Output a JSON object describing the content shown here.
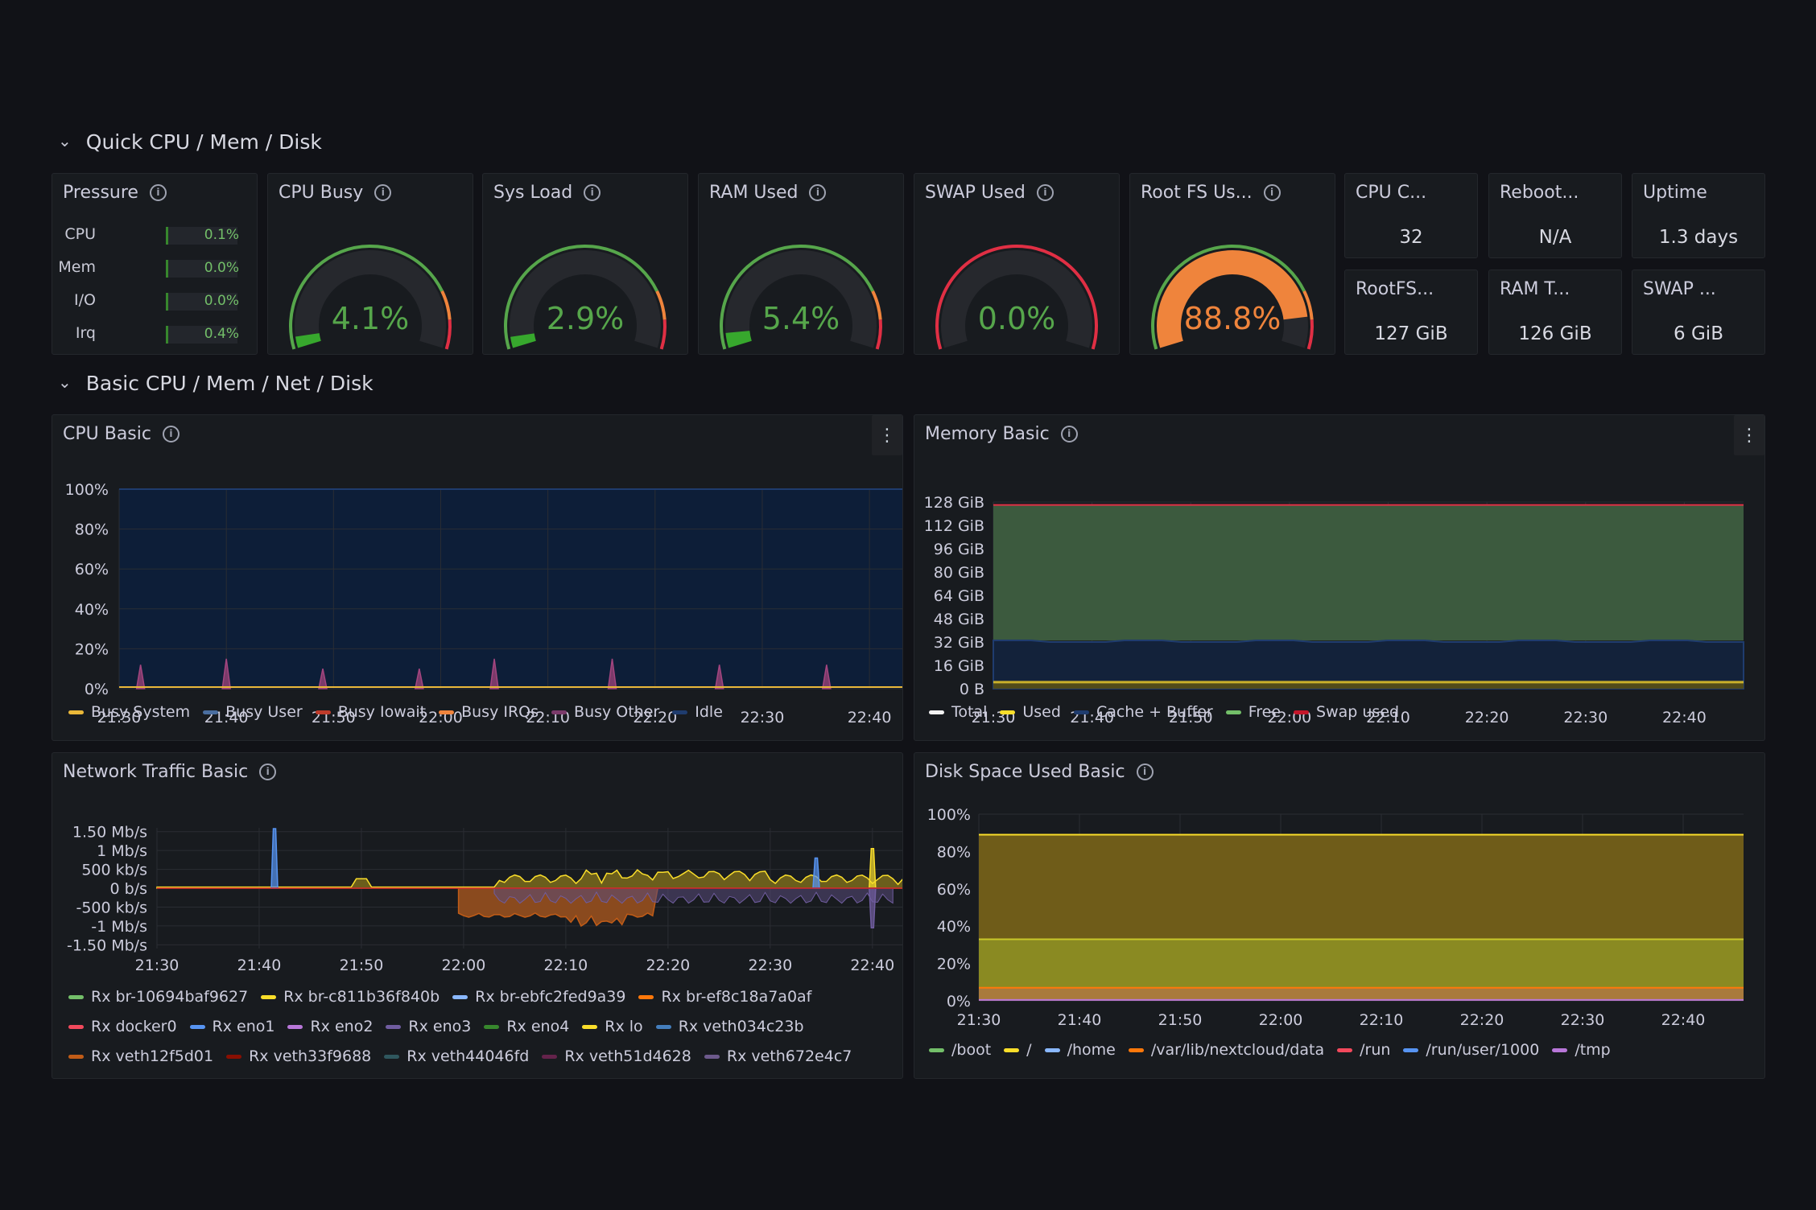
{
  "rows": [
    {
      "title": "Quick CPU / Mem / Disk"
    },
    {
      "title": "Basic CPU / Mem / Net / Disk"
    }
  ],
  "pressure": {
    "title": "Pressure",
    "rows": [
      {
        "label": "CPU",
        "value": "0.1%",
        "fraction": 0.001
      },
      {
        "label": "Mem",
        "value": "0.0%",
        "fraction": 0.0
      },
      {
        "label": "I/O",
        "value": "0.0%",
        "fraction": 0.0
      },
      {
        "label": "Irq",
        "value": "0.4%",
        "fraction": 0.004
      }
    ]
  },
  "gauges": [
    {
      "title": "CPU Busy",
      "value": "4.1%",
      "percent": 4.1,
      "color": "#37a82d",
      "ring_color": "#56a64b"
    },
    {
      "title": "Sys Load",
      "value": "2.9%",
      "percent": 2.9,
      "color": "#37a82d",
      "ring_color": "#56a64b"
    },
    {
      "title": "RAM Used",
      "value": "5.4%",
      "percent": 5.4,
      "color": "#37a82d",
      "ring_color": "#56a64b"
    },
    {
      "title": "SWAP Used",
      "value": "0.0%",
      "percent": 0.0,
      "color": "#37a82d",
      "ring_color": "#e02f44"
    },
    {
      "title": "Root FS Us...",
      "value": "88.8%",
      "percent": 88.8,
      "color": "#ef843c",
      "ring_color": "#56a64b"
    }
  ],
  "stats": [
    {
      "title": "CPU C...",
      "value": "32"
    },
    {
      "title": "Reboot...",
      "value": "N/A"
    },
    {
      "title": "Uptime",
      "value": "1.3 days"
    },
    {
      "title": "RootFS...",
      "value": "127 GiB"
    },
    {
      "title": "RAM T...",
      "value": "126 GiB"
    },
    {
      "title": "SWAP ...",
      "value": "6 GiB"
    }
  ],
  "cpu_basic": {
    "title": "CPU Basic",
    "legend": [
      {
        "name": "Busy System",
        "color": "#eab839"
      },
      {
        "name": "Busy User",
        "color": "#4a6ea0"
      },
      {
        "name": "Busy Iowait",
        "color": "#bf3b2a"
      },
      {
        "name": "Busy IRQs",
        "color": "#ef843c"
      },
      {
        "name": "Busy Other",
        "color": "#7b3a6a"
      },
      {
        "name": "Idle",
        "color": "#1f3c6e"
      }
    ]
  },
  "memory_basic": {
    "title": "Memory Basic",
    "legend": [
      {
        "name": "Total",
        "color": "#f2f2f2"
      },
      {
        "name": "Used",
        "color": "#fade2a"
      },
      {
        "name": "Cache + Buffer",
        "color": "#1f3c6e"
      },
      {
        "name": "Free",
        "color": "#73bf69"
      },
      {
        "name": "Swap used",
        "color": "#c4162a"
      }
    ]
  },
  "network_basic": {
    "title": "Network Traffic Basic",
    "legend": [
      {
        "name": "Rx br-10694baf9627",
        "color": "#73bf69"
      },
      {
        "name": "Rx br-c811b36f840b",
        "color": "#fade2a"
      },
      {
        "name": "Rx br-ebfc2fed9a39",
        "color": "#8ab8ff"
      },
      {
        "name": "Rx br-ef8c18a7a0af",
        "color": "#ff780a"
      },
      {
        "name": "Rx docker0",
        "color": "#f2495c"
      },
      {
        "name": "Rx eno1",
        "color": "#5794f2"
      },
      {
        "name": "Rx eno2",
        "color": "#b877d9"
      },
      {
        "name": "Rx eno3",
        "color": "#705da0"
      },
      {
        "name": "Rx eno4",
        "color": "#37872d"
      },
      {
        "name": "Rx lo",
        "color": "#fade2a"
      },
      {
        "name": "Rx veth034c23b",
        "color": "#447ebc"
      },
      {
        "name": "Rx veth12f5d01",
        "color": "#c15c17"
      },
      {
        "name": "Rx veth33f9688",
        "color": "#890f02"
      },
      {
        "name": "Rx veth44046fd",
        "color": "#2f575e"
      },
      {
        "name": "Rx veth51d4628",
        "color": "#64234b"
      },
      {
        "name": "Rx veth672e4c7",
        "color": "#6d5a8c"
      }
    ]
  },
  "disk_basic": {
    "title": "Disk Space Used Basic",
    "legend": [
      {
        "name": "/boot",
        "color": "#73bf69"
      },
      {
        "name": "/",
        "color": "#fade2a"
      },
      {
        "name": "/home",
        "color": "#8ab8ff"
      },
      {
        "name": "/var/lib/nextcloud/data",
        "color": "#ff780a"
      },
      {
        "name": "/run",
        "color": "#f2495c"
      },
      {
        "name": "/run/user/1000",
        "color": "#5794f2"
      },
      {
        "name": "/tmp",
        "color": "#b877d9"
      }
    ]
  },
  "time_ticks": [
    "21:30",
    "21:40",
    "21:50",
    "22:00",
    "22:10",
    "22:20",
    "22:30",
    "22:40"
  ],
  "chart_data": [
    {
      "type": "area",
      "title": "CPU Basic",
      "yticks": [
        "0%",
        "20%",
        "40%",
        "60%",
        "80%",
        "100%"
      ],
      "ylim": [
        0,
        100
      ],
      "xlabel": "",
      "ylabel": "",
      "x": [
        "21:30",
        "21:40",
        "21:50",
        "22:00",
        "22:10",
        "22:20",
        "22:30",
        "22:40"
      ],
      "series": [
        {
          "name": "Busy Other",
          "spikes_at": [
            "21:32",
            "21:40",
            "21:49",
            "21:58",
            "22:05",
            "22:16",
            "22:26",
            "22:36",
            "22:45"
          ],
          "spike_values": [
            12,
            15,
            10,
            10,
            15,
            15,
            12,
            12,
            10
          ]
        },
        {
          "name": "Busy System",
          "values": [
            1,
            1,
            1,
            1,
            1,
            1,
            1,
            1
          ]
        },
        {
          "name": "Idle",
          "values": [
            97,
            97,
            97,
            97,
            97,
            97,
            97,
            97
          ]
        }
      ]
    },
    {
      "type": "area",
      "title": "Memory Basic",
      "yticks": [
        "0 B",
        "16 GiB",
        "32 GiB",
        "48 GiB",
        "64 GiB",
        "80 GiB",
        "96 GiB",
        "112 GiB",
        "128 GiB"
      ],
      "ylim": [
        0,
        128
      ],
      "x": [
        "21:30",
        "21:40",
        "21:50",
        "22:00",
        "22:10",
        "22:20",
        "22:30",
        "22:40"
      ],
      "series": [
        {
          "name": "Total",
          "values": [
            126,
            126,
            126,
            126,
            126,
            126,
            126,
            126
          ]
        },
        {
          "name": "Used",
          "values": [
            5,
            5,
            5,
            5,
            5,
            5,
            5,
            5
          ]
        },
        {
          "name": "Cache + Buffer",
          "values": [
            33,
            33,
            32,
            32,
            33,
            33,
            33,
            32
          ]
        },
        {
          "name": "Free",
          "values": [
            88,
            88,
            89,
            89,
            88,
            88,
            88,
            89
          ]
        }
      ]
    },
    {
      "type": "area",
      "title": "Network Traffic Basic",
      "yticks": [
        "-1.50 Mb/s",
        "-1 Mb/s",
        "-500 kb/s",
        "0 b/s",
        "500 kb/s",
        "1 Mb/s",
        "1.50 Mb/s"
      ],
      "ylim": [
        -1.6,
        1.6
      ],
      "x": [
        "21:30",
        "21:40",
        "21:50",
        "22:00",
        "22:10",
        "22:20",
        "22:30",
        "22:40"
      ],
      "series": [
        {
          "name": "Rx br-c811b36f840b",
          "values": [
            0.05,
            0.05,
            0.05,
            0.15,
            0.3,
            0.4,
            0.4,
            0.9
          ]
        },
        {
          "name": "Rx eno1",
          "values": [
            0,
            1.6,
            0,
            0,
            0,
            0,
            0.8,
            0
          ]
        },
        {
          "name": "Rx veth12f5d01",
          "values": [
            0,
            0,
            0,
            -0.7,
            -0.75,
            -0.8,
            -0.8,
            0
          ]
        }
      ]
    },
    {
      "type": "area",
      "title": "Disk Space Used Basic",
      "yticks": [
        "0%",
        "20%",
        "40%",
        "60%",
        "80%",
        "100%"
      ],
      "ylim": [
        0,
        100
      ],
      "x": [
        "21:30",
        "21:40",
        "21:50",
        "22:00",
        "22:10",
        "22:20",
        "22:30",
        "22:40"
      ],
      "series": [
        {
          "name": "/",
          "values": [
            89,
            89,
            89,
            89,
            89,
            89,
            89,
            89
          ]
        },
        {
          "name": "/home",
          "values": [
            33,
            33,
            33,
            33,
            33,
            33,
            33,
            33
          ]
        },
        {
          "name": "/var/lib/nextcloud/data",
          "values": [
            7,
            7,
            7,
            7,
            7,
            7,
            7,
            7
          ]
        }
      ]
    }
  ]
}
